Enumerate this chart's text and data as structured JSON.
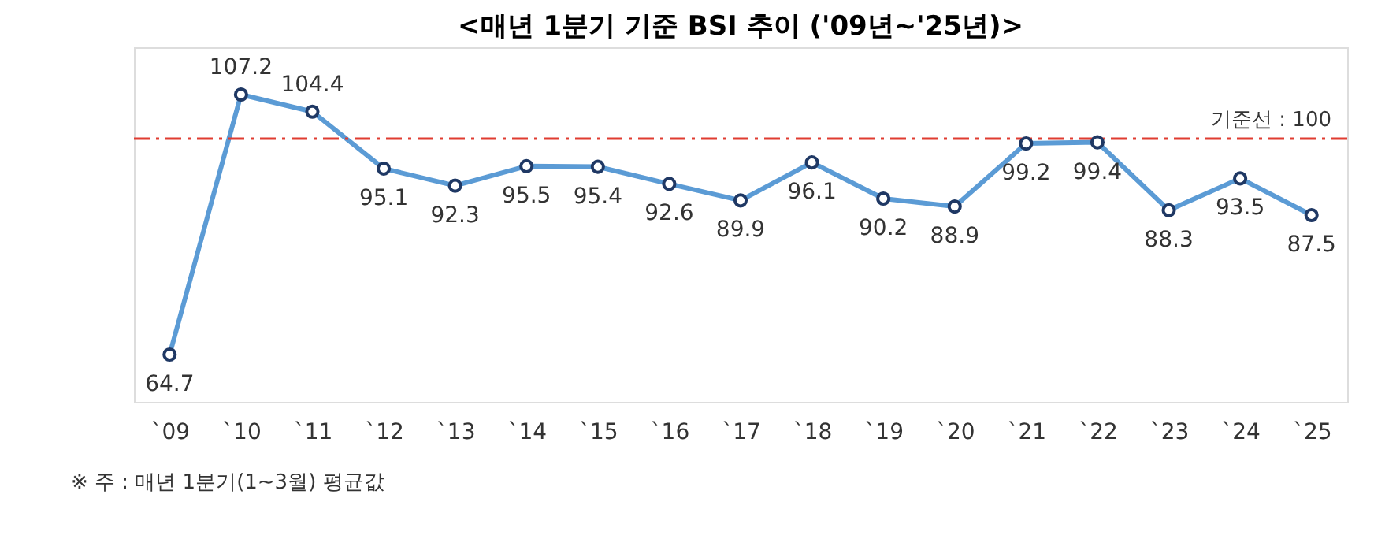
{
  "chart_data": {
    "type": "line",
    "title": "<매년 1분기 기준 BSI 추이 ('09년~'25년)>",
    "categories": [
      "`09",
      "`10",
      "`11",
      "`12",
      "`13",
      "`14",
      "`15",
      "`16",
      "`17",
      "`18",
      "`19",
      "`20",
      "`21",
      "`22",
      "`23",
      "`24",
      "`25"
    ],
    "series": [
      {
        "color": "#5b9bd5",
        "values": [
          64.7,
          107.2,
          104.4,
          95.1,
          92.3,
          95.5,
          95.4,
          92.6,
          89.9,
          96.1,
          90.2,
          88.9,
          99.2,
          99.4,
          88.3,
          93.5,
          87.5
        ]
      }
    ],
    "marker": "circle",
    "line_style": "solid",
    "data_labels": true,
    "grid": false,
    "tick_labels": "x",
    "ref_lines": [
      {
        "axis": "y",
        "value": 100,
        "label": "기준선 : 100",
        "color": "#e03c31",
        "line_style": "dashed"
      }
    ],
    "annotations": [
      "※ 주 : 매년 1분기(1~3월) 평균값"
    ]
  }
}
